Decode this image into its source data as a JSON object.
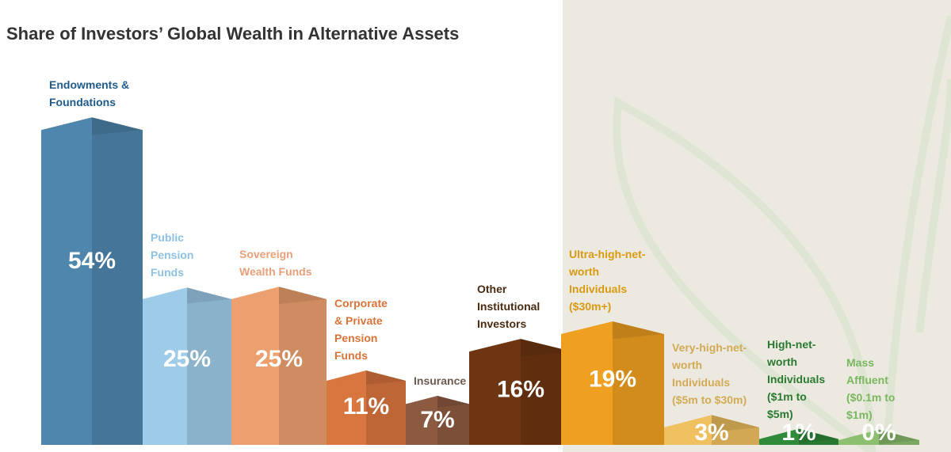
{
  "chart_data": {
    "type": "bar",
    "title": "Share of Investors’ Global Wealth in Alternative Assets",
    "categories": [
      "Endowments & Foundations",
      "Public Pension Funds",
      "Sovereign Wealth Funds",
      "Corporate & Private Pension Funds",
      "Insurance",
      "Other Institutional Investors",
      "Ultra-high-net-worth Individuals ($30m+)",
      "Very-high-net-worth Individuals ($5m to $30m)",
      "High-net-worth Individuals ($1m to $5m)",
      "Mass Affluent ($0.1m to $1m)"
    ],
    "values": [
      54,
      25,
      25,
      11,
      7,
      16,
      19,
      3,
      1,
      0
    ],
    "value_labels": [
      "54%",
      "25%",
      "25%",
      "11%",
      "7%",
      "16%",
      "19%",
      "3%",
      "1%",
      "0%"
    ],
    "colors": [
      "#4f86ad",
      "#9ecbe8",
      "#eda06f",
      "#d9753e",
      "#8c5a40",
      "#6e3512",
      "#f0a020",
      "#efc060",
      "#2f8a3a",
      "#8cc070"
    ],
    "label_colors": [
      "#1f5a8a",
      "#8fc1e3",
      "#e8a07a",
      "#d9733a",
      "#6e5a50",
      "#4a2a10",
      "#d99a10",
      "#d3aa55",
      "#2a7a30",
      "#7ab860"
    ],
    "ylim": [
      0,
      60
    ]
  }
}
